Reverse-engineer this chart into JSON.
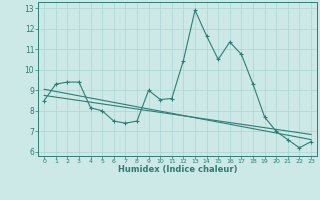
{
  "xlabel": "Humidex (Indice chaleur)",
  "xlim": [
    -0.5,
    23.5
  ],
  "ylim": [
    5.8,
    13.3
  ],
  "yticks": [
    6,
    7,
    8,
    9,
    10,
    11,
    12,
    13
  ],
  "xticks": [
    0,
    1,
    2,
    3,
    4,
    5,
    6,
    7,
    8,
    9,
    10,
    11,
    12,
    13,
    14,
    15,
    16,
    17,
    18,
    19,
    20,
    21,
    22,
    23
  ],
  "background_color": "#cce9e8",
  "grid_color": "#aad4d3",
  "line_color": "#2e7d74",
  "line1_x": [
    0,
    1,
    2,
    3,
    4,
    5,
    6,
    7,
    8,
    9,
    10,
    11,
    12,
    13,
    14,
    15,
    16,
    17,
    18,
    19,
    20,
    21,
    22,
    23
  ],
  "line1_y": [
    8.5,
    9.3,
    9.4,
    9.4,
    8.15,
    8.0,
    7.5,
    7.4,
    7.5,
    9.0,
    8.55,
    8.6,
    10.45,
    12.9,
    11.65,
    10.5,
    11.35,
    10.75,
    9.3,
    7.7,
    7.0,
    6.6,
    6.2,
    6.5
  ],
  "line2_x": [
    0,
    23
  ],
  "line2_y": [
    9.05,
    6.6
  ],
  "line3_x": [
    0,
    23
  ],
  "line3_y": [
    8.75,
    6.85
  ]
}
